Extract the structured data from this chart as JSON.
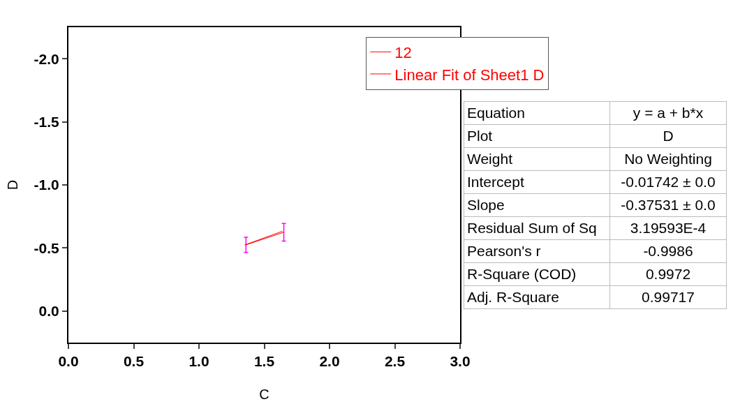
{
  "chart_data": [
    {
      "type": "line",
      "xlabel": "C",
      "ylabel": "D",
      "xlim": [
        0,
        3
      ],
      "ylim": [
        0.25,
        -2.25
      ],
      "xticks": [
        {
          "value": 0,
          "label": "0.0"
        },
        {
          "value": 0.5,
          "label": "0.5"
        },
        {
          "value": 1,
          "label": "1.0"
        },
        {
          "value": 1.5,
          "label": "1.5"
        },
        {
          "value": 2,
          "label": "2.0"
        },
        {
          "value": 2.5,
          "label": "2.5"
        },
        {
          "value": 3,
          "label": "3.0"
        }
      ],
      "yticks": [
        {
          "value": -2,
          "label": "-2.0"
        },
        {
          "value": -1.5,
          "label": "-1.5"
        },
        {
          "value": -1,
          "label": "-1.0"
        },
        {
          "value": -0.5,
          "label": "-0.5"
        },
        {
          "value": 0,
          "label": "0.0"
        }
      ],
      "grid": false,
      "legend": "top right",
      "marker": "none",
      "x": [
        1.36,
        1.65
      ],
      "series": [
        {
          "name": "12",
          "color": "#ff0000",
          "values": [
            -0.525,
            -0.625
          ],
          "errors": [
            0.06,
            0.07
          ]
        },
        {
          "name": "Linear Fit of Sheet1 D",
          "color": "#ff0000",
          "x": [
            1.35,
            1.64
          ],
          "values": [
            -0.524,
            -0.633
          ]
        }
      ]
    },
    {
      "type": "other",
      "annotations": [
        "Equation",
        "y = a + b*x",
        "Plot",
        "D",
        "Weight",
        "No Weighting",
        "Intercept",
        "-0.01742 ± 0.0",
        "Slope",
        "-0.37531 ± 0.0",
        "Residual Sum of Sq",
        "3.19593E-4",
        "Pearson's r",
        "-0.9986",
        "R-Square (COD)",
        "0.9972",
        "Adj. R-Square",
        "0.99717"
      ]
    }
  ]
}
